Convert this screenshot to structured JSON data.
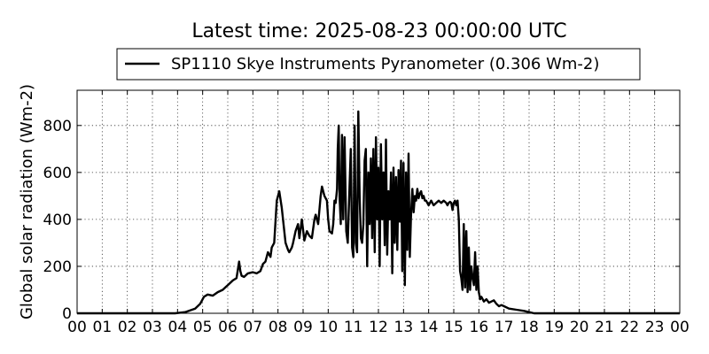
{
  "chart_data": {
    "type": "line",
    "title": "Latest time: 2025-08-23 00:00:00 UTC",
    "xlabel": "",
    "ylabel": "Global solar radiation (Wm-2)",
    "xlim": [
      0,
      24
    ],
    "ylim": [
      0,
      950
    ],
    "grid": true,
    "legend_placement": "top-center, above plot",
    "x_ticks": [
      "00",
      "01",
      "02",
      "03",
      "04",
      "05",
      "06",
      "07",
      "08",
      "09",
      "10",
      "11",
      "12",
      "13",
      "14",
      "15",
      "16",
      "17",
      "18",
      "19",
      "20",
      "21",
      "22",
      "23",
      "00"
    ],
    "y_ticks": [
      0,
      200,
      400,
      600,
      800
    ],
    "series": [
      {
        "name": "SP1110 Skye Instruments Pyranometer (0.306 Wm-2)",
        "color": "#000000",
        "x": [
          0,
          3.9,
          4.3,
          4.7,
          4.9,
          5.05,
          5.2,
          5.4,
          5.6,
          5.8,
          6.0,
          6.2,
          6.35,
          6.45,
          6.5,
          6.55,
          6.65,
          6.8,
          7.0,
          7.15,
          7.3,
          7.4,
          7.5,
          7.6,
          7.7,
          7.75,
          7.85,
          7.95,
          8.05,
          8.15,
          8.3,
          8.4,
          8.45,
          8.55,
          8.6,
          8.7,
          8.8,
          8.85,
          8.95,
          9.05,
          9.15,
          9.25,
          9.35,
          9.45,
          9.5,
          9.6,
          9.7,
          9.75,
          9.85,
          9.95,
          10.0,
          10.05,
          10.15,
          10.2,
          10.25,
          10.3,
          10.35,
          10.38,
          10.42,
          10.45,
          10.5,
          10.55,
          10.6,
          10.65,
          10.72,
          10.78,
          10.85,
          10.9,
          10.95,
          11.0,
          11.05,
          11.1,
          11.15,
          11.2,
          11.25,
          11.3,
          11.35,
          11.4,
          11.45,
          11.5,
          11.55,
          11.6,
          11.65,
          11.7,
          11.75,
          11.8,
          11.85,
          11.9,
          11.95,
          12.0,
          12.05,
          12.1,
          12.15,
          12.2,
          12.25,
          12.3,
          12.35,
          12.4,
          12.45,
          12.5,
          12.55,
          12.6,
          12.65,
          12.7,
          12.75,
          12.8,
          12.85,
          12.9,
          12.95,
          13.0,
          13.05,
          13.1,
          13.15,
          13.2,
          13.25,
          13.3,
          13.35,
          13.4,
          13.45,
          13.5,
          13.55,
          13.6,
          13.65,
          13.7,
          13.75,
          13.8,
          13.85,
          13.9,
          13.95,
          14.0,
          14.1,
          14.2,
          14.3,
          14.4,
          14.5,
          14.6,
          14.7,
          14.75,
          14.8,
          14.85,
          14.9,
          14.95,
          15.0,
          15.05,
          15.1,
          15.15,
          15.2,
          15.25,
          15.3,
          15.35,
          15.4,
          15.45,
          15.5,
          15.55,
          15.6,
          15.65,
          15.7,
          15.75,
          15.8,
          15.85,
          15.9,
          15.95,
          16.0,
          16.05,
          16.1,
          16.2,
          16.3,
          16.4,
          16.5,
          16.6,
          16.7,
          16.8,
          16.9,
          17.0,
          17.2,
          17.5,
          17.8,
          18.0,
          18.2,
          24
        ],
        "y": [
          0,
          0,
          5,
          20,
          40,
          70,
          80,
          75,
          90,
          100,
          120,
          140,
          150,
          220,
          180,
          160,
          155,
          170,
          175,
          170,
          180,
          210,
          220,
          260,
          240,
          280,
          300,
          480,
          520,
          450,
          300,
          270,
          260,
          280,
          300,
          350,
          380,
          320,
          400,
          310,
          350,
          330,
          320,
          400,
          420,
          380,
          500,
          540,
          500,
          480,
          400,
          350,
          340,
          380,
          480,
          470,
          530,
          700,
          800,
          500,
          380,
          760,
          400,
          750,
          350,
          300,
          540,
          700,
          280,
          240,
          800,
          300,
          260,
          860,
          500,
          320,
          300,
          380,
          650,
          700,
          200,
          600,
          380,
          660,
          320,
          700,
          260,
          750,
          400,
          620,
          200,
          720,
          400,
          600,
          290,
          740,
          250,
          520,
          400,
          600,
          170,
          620,
          300,
          580,
          270,
          610,
          390,
          650,
          180,
          640,
          120,
          600,
          270,
          680,
          240,
          420,
          530,
          430,
          500,
          480,
          530,
          490,
          510,
          520,
          490,
          500,
          480,
          480,
          470,
          460,
          480,
          460,
          470,
          480,
          470,
          480,
          470,
          460,
          470,
          475,
          470,
          440,
          470,
          480,
          460,
          480,
          400,
          180,
          150,
          100,
          380,
          110,
          350,
          90,
          280,
          100,
          200,
          150,
          120,
          260,
          100,
          200,
          90,
          60,
          70,
          50,
          60,
          45,
          50,
          55,
          40,
          30,
          35,
          30,
          20,
          15,
          10,
          5,
          0,
          0
        ]
      }
    ]
  }
}
